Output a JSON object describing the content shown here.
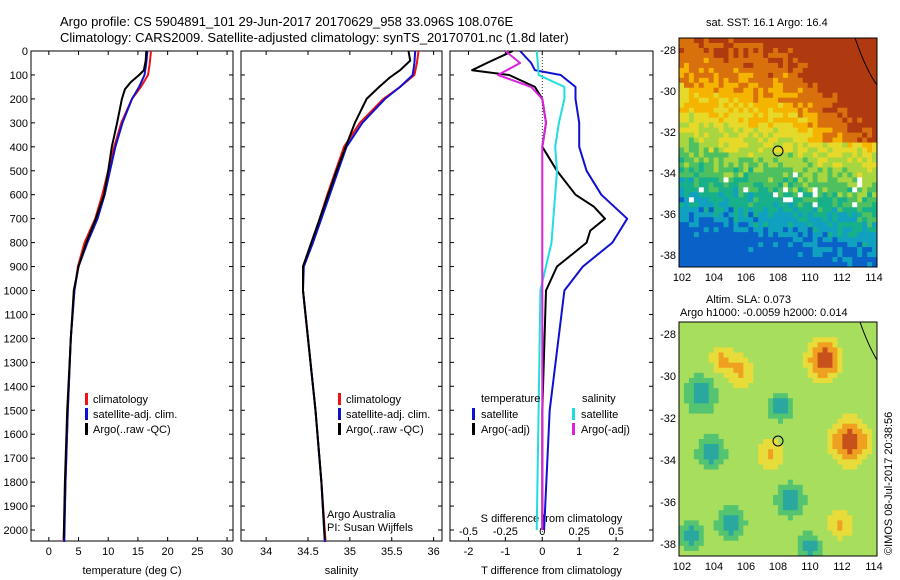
{
  "header": {
    "line1": "Argo profile: CS 5904891_101 29-Jun-2017 20170629_958 33.096S 108.076E",
    "line2": "Climatology: CARS2009. Satellite-adjusted climatology: synTS_20170701.nc (1.8d later)"
  },
  "colors": {
    "climatology": "#ee1111",
    "satellite": "#1010d0",
    "argo": "#000000",
    "satellite_s": "#22dddd",
    "argo_s": "#dd22dd"
  },
  "depth_axis": {
    "ticks": [
      0,
      100,
      200,
      300,
      400,
      500,
      600,
      700,
      800,
      900,
      1000,
      1100,
      1200,
      1300,
      1400,
      1500,
      1600,
      1700,
      1800,
      1900,
      2000
    ],
    "range": [
      0,
      2060
    ]
  },
  "maps": {
    "sst": {
      "title": "sat. SST: 16.1  Argo: 16.4",
      "yticks": [
        "-28",
        "-30",
        "-32",
        "-34",
        "-36",
        "-38"
      ],
      "xticks": [
        "102",
        "104",
        "106",
        "108",
        "110",
        "112",
        "114"
      ]
    },
    "sla": {
      "title1": "Altim. SLA: 0.073",
      "title2": "Argo h1000: -0.0059 h2000: 0.014",
      "yticks": [
        "-28",
        "-30",
        "-32",
        "-34",
        "-36",
        "-38"
      ],
      "xticks": [
        "102",
        "104",
        "106",
        "108",
        "110",
        "112",
        "114"
      ]
    }
  },
  "footer": {
    "argo_australia": "Argo Australia",
    "pi": "PI: Susan Wijffels",
    "credit": "©IMOS 08-Jul-2017 20:38:56"
  },
  "legends": {
    "temp": [
      "climatology",
      "satellite-adj. clim.",
      "Argo(..raw -QC)"
    ],
    "sal": [
      "climatology",
      "satellite-adj. clim.",
      "Argo(..raw -QC)"
    ],
    "diff_t_head": "temperature",
    "diff_s_head": "salinity",
    "diff_items": [
      "satellite",
      "Argo(-adj)"
    ]
  },
  "chart_data": [
    {
      "type": "line",
      "xlabel": "temperature (deg C)",
      "xlim": [
        -3,
        31
      ],
      "xticks": [
        0,
        5,
        10,
        15,
        20,
        25,
        30
      ],
      "series": [
        {
          "name": "climatology",
          "depth": [
            0,
            50,
            100,
            150,
            200,
            300,
            400,
            500,
            600,
            700,
            800,
            900,
            1000,
            1200,
            1500,
            1800,
            2050
          ],
          "values": [
            17.2,
            17.0,
            16.7,
            15.5,
            14.0,
            12.2,
            11.0,
            10.0,
            9.0,
            7.8,
            6.0,
            4.9,
            4.3,
            3.7,
            3.2,
            2.8,
            2.5
          ]
        },
        {
          "name": "satellite-adj. clim.",
          "depth": [
            0,
            50,
            100,
            150,
            200,
            300,
            400,
            500,
            600,
            700,
            800,
            900,
            1000,
            1200,
            1500,
            1800,
            2050
          ],
          "values": [
            16.6,
            16.4,
            16.1,
            15.2,
            14.0,
            12.4,
            11.2,
            10.3,
            9.4,
            8.2,
            6.5,
            5.0,
            4.3,
            3.7,
            3.2,
            2.8,
            2.6
          ]
        },
        {
          "name": "Argo(..raw -QC)",
          "depth": [
            0,
            40,
            80,
            100,
            130,
            160,
            200,
            300,
            400,
            500,
            600,
            700,
            800,
            900,
            1000,
            1200,
            1500,
            1800,
            2040
          ],
          "values": [
            16.4,
            16.3,
            16.0,
            15.2,
            13.8,
            12.8,
            12.3,
            11.5,
            10.6,
            10.0,
            9.3,
            7.9,
            6.3,
            5.0,
            4.2,
            3.7,
            3.1,
            2.7,
            2.5
          ]
        }
      ]
    },
    {
      "type": "line",
      "xlabel": "salinity",
      "xlim": [
        33.7,
        36.1
      ],
      "xticks": [
        34,
        34.5,
        35,
        35.5,
        36
      ],
      "series": [
        {
          "name": "climatology",
          "depth": [
            0,
            50,
            100,
            150,
            200,
            300,
            400,
            500,
            600,
            700,
            800,
            900,
            1000,
            1200,
            1500,
            1800,
            2050
          ],
          "values": [
            35.82,
            35.8,
            35.77,
            35.6,
            35.4,
            35.12,
            34.93,
            34.83,
            34.73,
            34.64,
            34.55,
            34.44,
            34.44,
            34.5,
            34.59,
            34.66,
            34.71
          ]
        },
        {
          "name": "satellite-adj. clim.",
          "depth": [
            0,
            50,
            100,
            150,
            200,
            300,
            400,
            500,
            600,
            700,
            800,
            900,
            1000,
            1200,
            1500,
            1800,
            2050
          ],
          "values": [
            35.78,
            35.77,
            35.75,
            35.6,
            35.42,
            35.15,
            34.96,
            34.86,
            34.76,
            34.66,
            34.56,
            34.45,
            34.44,
            34.5,
            34.59,
            34.66,
            34.7
          ]
        },
        {
          "name": "Argo(..raw -QC)",
          "depth": [
            0,
            40,
            80,
            110,
            150,
            200,
            300,
            400,
            500,
            600,
            700,
            800,
            900,
            1000,
            1200,
            1500,
            1800,
            2040
          ],
          "values": [
            35.7,
            35.72,
            35.6,
            35.48,
            35.35,
            35.2,
            35.06,
            34.95,
            34.84,
            34.74,
            34.64,
            34.54,
            34.44,
            34.44,
            34.5,
            34.59,
            34.66,
            34.7
          ]
        }
      ]
    },
    {
      "type": "line",
      "xlabel": "T difference from climatology",
      "xlabel2": "S difference from climatology",
      "xlim": [
        -2.5,
        3.0
      ],
      "xticks": [
        -2,
        -1,
        0,
        1,
        2
      ],
      "xticks_s": [
        "-0.5",
        "-0.25",
        "0",
        "0.25",
        "0.5"
      ],
      "xticks_s_pos": [
        -2,
        -1,
        0,
        1,
        2
      ],
      "series": [
        {
          "name": "satellite (temperature)",
          "depth": [
            0,
            50,
            80,
            100,
            150,
            200,
            300,
            400,
            500,
            600,
            700,
            800,
            900,
            1000,
            1500,
            2000
          ],
          "values": [
            -0.6,
            -0.3,
            -0.2,
            0.5,
            0.9,
            0.9,
            1.0,
            1.0,
            1.2,
            1.6,
            2.3,
            1.9,
            1.1,
            0.6,
            0.2,
            0.05
          ]
        },
        {
          "name": "Argo(-adj) (temperature)",
          "depth": [
            0,
            50,
            80,
            100,
            150,
            200,
            300,
            400,
            500,
            600,
            650,
            700,
            750,
            800,
            850,
            900,
            1000,
            1500,
            2000
          ],
          "values": [
            -0.8,
            -1.5,
            -1.9,
            -0.9,
            -0.2,
            0.0,
            0.1,
            0.0,
            0.4,
            0.9,
            1.4,
            1.7,
            1.3,
            1.2,
            0.8,
            0.4,
            0.1,
            0.0,
            0.0
          ]
        },
        {
          "name": "satellite (salinity)",
          "depth": [
            0,
            50,
            100,
            150,
            200,
            300,
            400,
            500,
            600,
            700,
            800,
            900,
            1000,
            1500,
            2000
          ],
          "values": [
            -0.15,
            -0.12,
            -0.1,
            0.6,
            0.6,
            0.45,
            0.35,
            0.4,
            0.35,
            0.3,
            0.25,
            0.1,
            -0.05,
            -0.1,
            -0.15
          ]
        },
        {
          "name": "Argo(-adj) (salinity)",
          "depth": [
            0,
            50,
            100,
            150,
            200,
            300,
            400,
            500,
            600,
            700,
            800,
            900,
            1000,
            1500,
            2000
          ],
          "values": [
            -1.0,
            -0.6,
            -1.2,
            -0.3,
            0.0,
            0.1,
            0.0,
            0.0,
            0.0,
            0.0,
            0.0,
            0.0,
            0.0,
            0.0,
            0.0
          ]
        }
      ]
    }
  ]
}
